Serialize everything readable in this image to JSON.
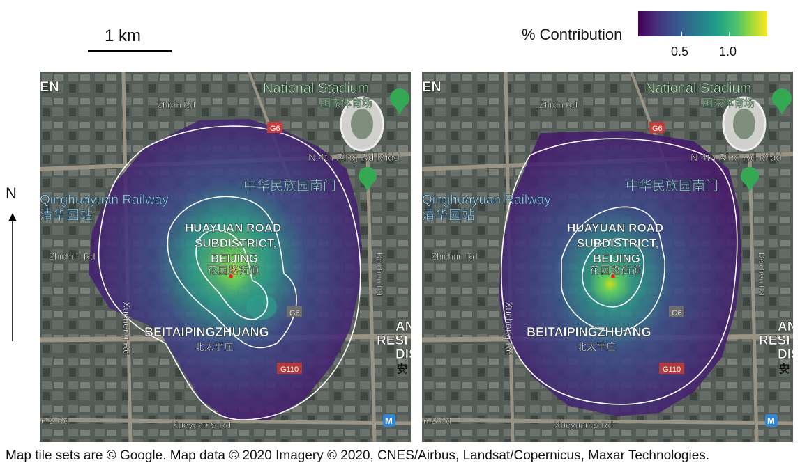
{
  "scale_bar": {
    "label": "1 km"
  },
  "colorbar": {
    "title": "% Contribution",
    "ticks": [
      "0.5",
      "1.0"
    ],
    "colormap": [
      "#440154",
      "#46327e",
      "#365c8d",
      "#277f8e",
      "#1fa187",
      "#4ac16d",
      "#a0da39",
      "#fde725"
    ]
  },
  "north_arrow": {
    "label": "N"
  },
  "map_labels": {
    "stadium": "National Stadium",
    "stadium_cn": "国家体育场",
    "zhixin": "Zhixin Rd",
    "g6": "G6",
    "ring_rd": "N 4th Ring Rd Midd",
    "park_cn": "中华民族园南门",
    "railway": "Qinghuayuan Railway",
    "railway_cn": "清华园站",
    "huayuan1": "HUAYUAN ROAD",
    "huayuan2": "SUBDISTRICT,",
    "huayuan3": "BEIJING",
    "huayuan_cn": "花园路街道",
    "zhichun": "Zhichun Rd",
    "beichen": "Beichen Rd",
    "g6_lower": "G6",
    "beitaiping": "BEITAIPINGZHUANG",
    "beitaiping_cn": "北太平庄",
    "xueyuan_s": "Xueyuan S Rd",
    "xueyuan_n": "Xueyuan S Rd",
    "s_rd": "n S Rd",
    "g110": "G110",
    "xucheng": "Xucheng Rd",
    "en": "EN",
    "an": "AN",
    "resi": "RESI",
    "dis": "DIS",
    "an_cn": "安",
    "m": "M",
    "n_small": "n",
    "lui": "ɥ"
  },
  "attribution": "Map tile sets are © Google. Map data © 2020 Imagery © 2020, CNES/Airbus, Landsat/Copernicus, Maxar Technologies."
}
